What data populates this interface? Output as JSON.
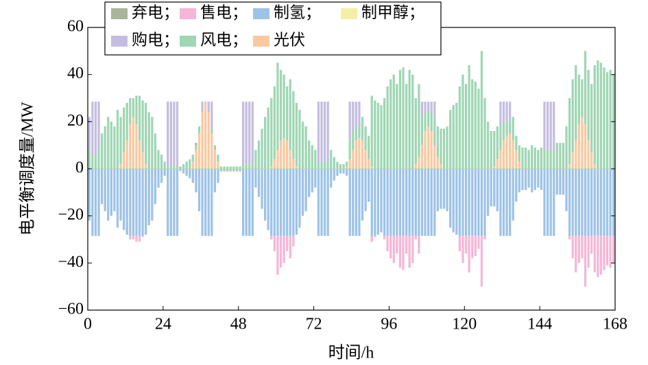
{
  "chart_data": {
    "type": "bar",
    "stacked": true,
    "x_label": "时间/h",
    "y_label": "电平衡调度量/MW",
    "xlim": [
      0,
      168
    ],
    "xticks": [
      0,
      24,
      48,
      72,
      96,
      120,
      144,
      168
    ],
    "ylim": [
      -60,
      60
    ],
    "yticks": [
      {
        "value": -60,
        "label": "−60"
      },
      {
        "value": -40,
        "label": "−40"
      },
      {
        "value": -20,
        "label": "−20"
      },
      0,
      20,
      40,
      60
    ],
    "grid": false,
    "series": [
      {
        "name": "弃电；",
        "color": "#a9b59b",
        "values": [
          0,
          0,
          0,
          0,
          0,
          0,
          0,
          0,
          0,
          0,
          0,
          0,
          0,
          0,
          0,
          0,
          0,
          0,
          0,
          0,
          0,
          0,
          0,
          0,
          0,
          0,
          0,
          0,
          0,
          0,
          0,
          0,
          0,
          0,
          1,
          0,
          0,
          0,
          0,
          0,
          0,
          0,
          0,
          0,
          0,
          0,
          0,
          0,
          0,
          0,
          0,
          0,
          0,
          0,
          0,
          0,
          0,
          0,
          0,
          0,
          0,
          0,
          0,
          0,
          0,
          0,
          0,
          0,
          0,
          0,
          0,
          0,
          0,
          0,
          0,
          0,
          0,
          0,
          0,
          0,
          0,
          0,
          0,
          0,
          0,
          0,
          0,
          0,
          0,
          0,
          0,
          0,
          0,
          0,
          0,
          0,
          0,
          0,
          0,
          0,
          0,
          0,
          0,
          0,
          0,
          0,
          0,
          0,
          0,
          0,
          0,
          0,
          0,
          0,
          0,
          0,
          0,
          0,
          0,
          0,
          0,
          0,
          0,
          0,
          0,
          0,
          0,
          0,
          0,
          0,
          0,
          0,
          0,
          0,
          0,
          0,
          0,
          0,
          0,
          0,
          0,
          0,
          0,
          0,
          0,
          0,
          0,
          0,
          0,
          0,
          0,
          0,
          0,
          0,
          0,
          0,
          0,
          0,
          0,
          0,
          0,
          0,
          0,
          0,
          0,
          0,
          0,
          0
        ]
      },
      {
        "name": "售电；",
        "color": "#f4b7d6",
        "values": [
          0,
          0,
          0,
          0,
          0,
          0,
          0,
          0,
          0,
          0,
          0,
          0,
          0,
          -1.5,
          -1.5,
          -2.5,
          -2.5,
          -0.5,
          0,
          0,
          0,
          0,
          0,
          0,
          0,
          0,
          0,
          0,
          0,
          0,
          0,
          0,
          0,
          0,
          0,
          0,
          0,
          0,
          0,
          0,
          0,
          0,
          0,
          0,
          0,
          0,
          0,
          0,
          0,
          0,
          0,
          0,
          0,
          0,
          0,
          0,
          0,
          0,
          -1.5,
          -6.5,
          -16.5,
          -13.5,
          -11.5,
          -6.5,
          -9.5,
          -4.5,
          0,
          0,
          0,
          0,
          0,
          0,
          0,
          0,
          0,
          0,
          0,
          0,
          0,
          0,
          0,
          0,
          0,
          0,
          0,
          0,
          0,
          0,
          0,
          0,
          -2.5,
          -0.5,
          0,
          0,
          -1.5,
          -6.5,
          -9.5,
          -11.5,
          -7.5,
          -13.5,
          -14.5,
          -7.5,
          -13.5,
          -11.5,
          -1.5,
          -7.5,
          0,
          0,
          0,
          0,
          0,
          0,
          0,
          0,
          0,
          0,
          0,
          0,
          -6.5,
          -11.5,
          -7.5,
          -15.5,
          -9.5,
          -8.5,
          -5.5,
          -21.5,
          -1.5,
          0,
          0,
          0,
          0,
          0,
          0,
          0,
          0,
          0,
          0,
          0,
          0,
          0,
          0,
          0,
          0,
          0,
          0,
          0,
          0,
          0,
          0,
          0,
          0,
          0,
          0,
          -1.5,
          -9.5,
          -15.5,
          -11.5,
          -9.5,
          -21.5,
          -13.5,
          -7.5,
          -15.5,
          -17.5,
          -16.5,
          -14.5,
          -12.5,
          -13.5,
          -11.5
        ]
      },
      {
        "name": "制氢；",
        "color": "#9dc3e6",
        "values": [
          -22,
          -28.5,
          -28.5,
          -28.5,
          -15,
          -18,
          -22,
          -20,
          -18,
          -25,
          -22,
          -26,
          -28,
          -28.5,
          -28.5,
          -28.5,
          -28.5,
          -28.5,
          -28,
          -24,
          -22,
          -15,
          -8,
          -6,
          -3,
          -28.5,
          -28.5,
          -28.5,
          -28.5,
          -1,
          -2,
          -3,
          -4,
          -6,
          -10,
          -18,
          -28.5,
          -28.5,
          -28.5,
          -28.5,
          -10,
          -6,
          -1,
          -1,
          -1,
          -1,
          -1,
          -1,
          -1,
          -28.5,
          -28.5,
          -28.5,
          -28.5,
          -8,
          -12,
          -17,
          -22,
          -26,
          -28.5,
          -28.5,
          -28.5,
          -28.5,
          -28.5,
          -28.5,
          -28.5,
          -28.5,
          -28,
          -25,
          -20,
          -18,
          -12,
          -10,
          -8,
          -28.5,
          -28.5,
          -28.5,
          -28.5,
          -8,
          -5,
          -3,
          -2,
          -2,
          -3,
          -28.5,
          -28.5,
          -28.5,
          -28.5,
          -22,
          -18,
          -14,
          -28.5,
          -28.5,
          -28,
          -27,
          -28.5,
          -28.5,
          -28.5,
          -28.5,
          -28.5,
          -28.5,
          -28.5,
          -28.5,
          -28.5,
          -28.5,
          -28.5,
          -28.5,
          -28.5,
          -28.5,
          -28.5,
          -28.5,
          -28.5,
          -18,
          -17,
          -17,
          -18,
          -25,
          -27,
          -28,
          -28.5,
          -28.5,
          -28.5,
          -28.5,
          -28.5,
          -28.5,
          -28.5,
          -28.5,
          -28.5,
          -20,
          -16,
          -16,
          -18,
          -28.5,
          -28.5,
          -28.5,
          -28.5,
          -22,
          -14,
          -10,
          -9,
          -9,
          -8,
          -10,
          -9,
          -8,
          -9,
          -28.5,
          -28.5,
          -28.5,
          -28.5,
          -11,
          -11,
          -11,
          -18,
          -28.5,
          -28.5,
          -28.5,
          -28.5,
          -28.5,
          -28.5,
          -28.5,
          -28.5,
          -28.5,
          -28.5,
          -28.5,
          -28.5,
          -28.5,
          -28.5,
          -28.5
        ]
      },
      {
        "name": "制甲醇；",
        "color": "#f3f0a6",
        "values": [
          0,
          0,
          0,
          0,
          0,
          0,
          0,
          0,
          0,
          0,
          0,
          0,
          0,
          0,
          0,
          0,
          0,
          0,
          0,
          0,
          0,
          0,
          0,
          0,
          0,
          0,
          0,
          0,
          0,
          0,
          0,
          0,
          0,
          0,
          0,
          0,
          0,
          0,
          0,
          0,
          0,
          0,
          -0.5,
          -0.5,
          -0.5,
          -0.5,
          -0.5,
          -0.5,
          -0.5,
          0,
          0,
          0,
          0,
          0,
          0,
          0,
          0,
          0,
          0,
          0,
          0,
          0,
          0,
          0,
          0,
          0,
          0,
          0,
          0,
          0,
          0,
          0,
          0,
          0,
          0,
          0,
          0,
          0,
          0,
          0,
          0,
          0,
          0,
          0,
          0,
          0,
          0,
          0,
          0,
          0,
          0,
          0,
          0,
          0,
          0,
          0,
          0,
          0,
          0,
          0,
          0,
          0,
          0,
          0,
          0,
          0,
          0,
          0,
          0,
          0,
          0,
          0,
          0,
          0,
          0,
          0,
          0,
          0,
          0,
          0,
          0,
          0,
          0,
          0,
          0,
          0,
          0,
          0,
          0,
          0,
          0,
          0,
          0,
          0,
          0,
          0,
          0,
          0,
          0,
          0,
          0,
          0,
          0,
          0,
          0,
          0,
          0,
          0,
          0,
          0,
          0,
          0,
          0,
          0,
          0,
          0,
          0,
          0,
          0,
          0,
          0,
          0,
          0,
          0,
          0,
          0,
          0,
          0
        ]
      },
      {
        "name": "购电；",
        "color": "#c5bde0",
        "values": [
          14,
          22.5,
          23.5,
          18.5,
          0,
          0,
          0,
          0,
          0,
          0,
          0,
          0,
          0,
          0,
          0,
          0,
          0,
          0,
          0,
          0,
          0,
          0,
          0,
          0,
          0,
          27.5,
          27.5,
          27.5,
          27.5,
          0,
          0,
          0,
          0,
          0,
          0,
          0,
          4.5,
          0.5,
          4.5,
          11.5,
          0,
          0,
          0,
          0,
          0,
          0,
          0,
          0,
          0,
          26.5,
          26.5,
          26.5,
          26.5,
          0,
          0,
          0,
          0,
          0,
          0,
          0,
          0,
          0,
          0,
          0,
          0,
          0,
          0,
          0,
          0,
          0,
          0,
          0,
          0,
          25.5,
          25.5,
          25.5,
          25.5,
          0,
          0,
          0,
          0,
          0,
          0,
          16.5,
          12.5,
          10.5,
          10.5,
          0,
          0,
          0,
          0,
          0,
          0,
          0,
          0,
          0,
          0,
          0,
          0,
          0,
          0,
          0,
          0,
          0,
          0,
          0,
          6.5,
          4.5,
          4.5,
          4.5,
          6.5,
          0,
          0,
          0,
          0,
          0,
          0,
          0,
          0,
          0,
          0,
          0,
          0,
          0,
          0,
          0,
          0,
          0,
          0,
          0,
          0,
          10.5,
          8.5,
          8.5,
          7.5,
          0,
          0,
          0,
          0,
          0,
          0,
          0,
          0,
          0,
          0,
          20.5,
          20.5,
          20.5,
          20.5,
          0,
          0,
          0,
          0,
          0,
          0,
          0,
          0,
          0,
          0,
          0,
          0,
          0,
          0,
          0,
          0,
          0,
          0,
          0
        ]
      },
      {
        "name": "风电；",
        "color": "#9fd6b4",
        "values": [
          8,
          6,
          5,
          10,
          15,
          18,
          22,
          20,
          18,
          25,
          20,
          19,
          16,
          11,
          8,
          12,
          19,
          22,
          26,
          24,
          22,
          15,
          8,
          6,
          3,
          1,
          1,
          1,
          1,
          1,
          2,
          3,
          4,
          3,
          2,
          3,
          0,
          0,
          0,
          2,
          2,
          3,
          1,
          1,
          1,
          1,
          1,
          1,
          1,
          2,
          2,
          2,
          2,
          8,
          12,
          17,
          22,
          26,
          29,
          31,
          37,
          30,
          27,
          23,
          30,
          29,
          27,
          25,
          20,
          18,
          12,
          10,
          8,
          3,
          3,
          3,
          3,
          8,
          5,
          3,
          2,
          2,
          2,
          8,
          8,
          6,
          5,
          10,
          10,
          10,
          30,
          29,
          28,
          27,
          30,
          35,
          38,
          40,
          36,
          42,
          43,
          36,
          42,
          40,
          28,
          31,
          12,
          8,
          6,
          8,
          12,
          13,
          15,
          17,
          18,
          25,
          27,
          28,
          35,
          40,
          36,
          44,
          38,
          37,
          34,
          50,
          30,
          20,
          16,
          15,
          14,
          10,
          8,
          6,
          6,
          10,
          6,
          7,
          9,
          9,
          8,
          10,
          9,
          8,
          9,
          8,
          8,
          8,
          8,
          11,
          11,
          11,
          18,
          28,
          31,
          32,
          21,
          16,
          31,
          30,
          29,
          42,
          46,
          45,
          43,
          41,
          42,
          40
        ]
      },
      {
        "name": "光伏",
        "color": "#f8c9a1",
        "values": [
          0,
          0,
          0,
          0,
          0,
          0,
          0,
          0,
          0,
          0,
          2,
          7,
          12,
          19,
          22,
          19,
          12,
          7,
          2,
          0,
          0,
          0,
          0,
          0,
          0,
          0,
          0,
          0,
          0,
          0,
          0,
          0,
          0,
          3,
          8,
          15,
          24,
          28,
          24,
          15,
          8,
          3,
          0,
          0,
          0,
          0,
          0,
          0,
          0,
          0,
          0,
          0,
          0,
          0,
          0,
          0,
          0,
          0,
          1,
          4,
          8,
          12,
          13,
          12,
          8,
          4,
          1,
          0,
          0,
          0,
          0,
          0,
          0,
          0,
          0,
          0,
          0,
          0,
          0,
          0,
          0,
          0,
          1,
          4,
          8,
          12,
          13,
          12,
          8,
          4,
          1,
          0,
          0,
          0,
          0,
          0,
          0,
          0,
          0,
          0,
          0,
          0,
          0,
          0,
          2,
          5,
          10,
          16,
          18,
          16,
          10,
          5,
          2,
          0,
          0,
          0,
          0,
          0,
          0,
          0,
          0,
          0,
          0,
          0,
          0,
          0,
          0,
          0,
          0,
          1,
          4,
          8,
          12,
          14,
          15,
          12,
          8,
          3,
          0,
          0,
          0,
          0,
          0,
          0,
          0,
          0,
          0,
          0,
          0,
          0,
          0,
          0,
          0,
          2,
          7,
          12,
          19,
          22,
          19,
          12,
          7,
          2,
          0,
          0,
          0,
          0,
          0,
          0
        ]
      }
    ]
  }
}
